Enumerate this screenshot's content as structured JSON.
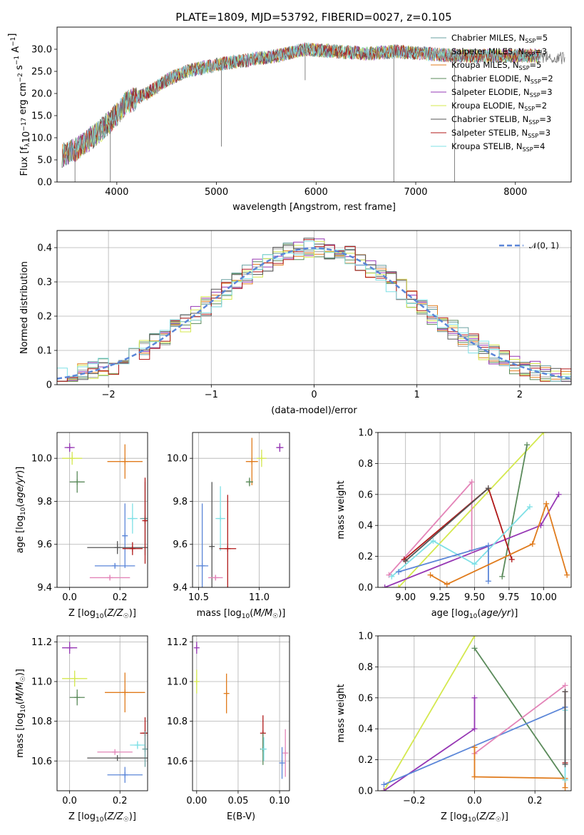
{
  "title": "PLATE=1809, MJD=53792, FIBERID=0027, z=0.105",
  "colors": {
    "chabrier_miles": "#6aa1a1",
    "salpeter_miles": "#a0a0a0",
    "kroupa_miles": "#e07b1c",
    "chabrier_elodie": "#5a8a5a",
    "salpeter_elodie": "#9637b4",
    "kroupa_elodie": "#d4e84e",
    "chabrier_stelib": "#555555",
    "salpeter_stelib": "#b01818",
    "kroupa_stelib": "#7fe0e6",
    "pink": "#e384b8",
    "blue": "#5b86d8",
    "gaussian": "#5b86d8"
  },
  "chart_data": [
    {
      "id": "spectrum",
      "type": "line",
      "title": "PLATE=1809, MJD=53792, FIBERID=0027, z=0.105",
      "xlabel": "wavelength [Angstrom, rest frame]",
      "ylabel": "Flux [f_λ10^{-17} erg cm^{-2} s^{-1} A^{-1}]",
      "xlim": [
        3400,
        8560
      ],
      "ylim": [
        0,
        35
      ],
      "xticks": [
        4000,
        5000,
        6000,
        7000,
        8000
      ],
      "yticks": [
        0,
        5,
        10,
        15,
        20,
        25,
        30
      ],
      "grid": false,
      "legend_position": "top-right",
      "legend": [
        {
          "label": "Chabrier MILES, N",
          "sub": "SSP",
          "tail": "=5",
          "color": "#6aa1a1"
        },
        {
          "label": "Salpeter MILES, N",
          "sub": "SSP",
          "tail": "=3",
          "color": "#a0a0a0"
        },
        {
          "label": "Kroupa MILES, N",
          "sub": "SSP",
          "tail": "=5",
          "color": "#e07b1c"
        },
        {
          "label": "Chabrier ELODIE, N",
          "sub": "SSP",
          "tail": "=2",
          "color": "#5a8a5a"
        },
        {
          "label": "Salpeter ELODIE, N",
          "sub": "SSP",
          "tail": "=3",
          "color": "#9637b4"
        },
        {
          "label": "Kroupa ELODIE, N",
          "sub": "SSP",
          "tail": "=2",
          "color": "#d4e84e"
        },
        {
          "label": "Chabrier STELIB, N",
          "sub": "SSP",
          "tail": "=3",
          "color": "#555555"
        },
        {
          "label": "Salpeter STELIB, N",
          "sub": "SSP",
          "tail": "=3",
          "color": "#b01818"
        },
        {
          "label": "Kroupa STELIB, N",
          "sub": "SSP",
          "tail": "=4",
          "color": "#7fe0e6"
        }
      ],
      "continuum": {
        "x": [
          3450,
          3600,
          3800,
          3950,
          4100,
          4300,
          4500,
          4700,
          5000,
          5300,
          5600,
          5900,
          6200,
          6500,
          6800,
          7100,
          7400,
          7700,
          8000,
          8300,
          8500
        ],
        "y": [
          6,
          7.5,
          11,
          14,
          18,
          20,
          23,
          25,
          26.5,
          27.5,
          28.5,
          30,
          29.5,
          29,
          29.5,
          29,
          28.5,
          28.5,
          28.5,
          28.5,
          28
        ]
      },
      "dips": [
        {
          "x": 3580,
          "y": 0
        },
        {
          "x": 3935,
          "y": 0
        },
        {
          "x": 5050,
          "y": 8
        },
        {
          "x": 5890,
          "y": 23
        },
        {
          "x": 6780,
          "y": 0
        },
        {
          "x": 7390,
          "y": 0
        }
      ]
    },
    {
      "id": "residuals",
      "type": "line",
      "xlabel": "(data-model)/error",
      "ylabel": "Normed distribution",
      "xlim": [
        -2.5,
        2.5
      ],
      "ylim": [
        0,
        0.45
      ],
      "xticks": [
        -2,
        -1,
        0,
        1,
        2
      ],
      "yticks": [
        0.0,
        0.1,
        0.2,
        0.3,
        0.4
      ],
      "grid": true,
      "legend_position": "top-right",
      "legend": [
        {
          "label": "𝒩(0, 1)",
          "style": "dashed",
          "color": "#5b86d8"
        }
      ],
      "gaussian": {
        "mu": 0,
        "sigma": 1
      }
    },
    {
      "id": "age_vs_Z",
      "type": "scatter",
      "xlabel": "Z [log10(Z/Z☉)]",
      "ylabel": "age  [log10(age/yr)]",
      "xlim": [
        -0.05,
        0.31
      ],
      "ylim": [
        9.4,
        10.12
      ],
      "xticks": [
        0.0,
        0.2
      ],
      "yticks": [
        9.4,
        9.6,
        9.8,
        10.0
      ],
      "grid": true,
      "points": [
        {
          "x": 0.0,
          "y": 10.05,
          "xerr": 0.02,
          "yerr": 0.02,
          "color": "#9637b4"
        },
        {
          "x": 0.01,
          "y": 10.0,
          "xerr": 0.04,
          "yerr": 0.03,
          "color": "#d4e84e"
        },
        {
          "x": 0.22,
          "y": 9.985,
          "xerr": 0.07,
          "yerr": 0.08,
          "color": "#e07b1c"
        },
        {
          "x": 0.03,
          "y": 9.89,
          "xerr": 0.03,
          "yerr": 0.05,
          "color": "#5a8a5a"
        },
        {
          "x": 0.3,
          "y": 9.72,
          "xerr": 0.02,
          "yerr": 0.17,
          "color": "#6aa1a1"
        },
        {
          "x": 0.25,
          "y": 9.72,
          "xerr": 0.02,
          "yerr": 0.07,
          "color": "#7fe0e6"
        },
        {
          "x": 0.22,
          "y": 9.64,
          "xerr": 0.01,
          "yerr": 0.15,
          "color": "#5b86d8"
        },
        {
          "x": 0.19,
          "y": 9.585,
          "xerr": 0.12,
          "yerr": 0.03,
          "color": "#555555"
        },
        {
          "x": 0.25,
          "y": 9.58,
          "xerr": 0.04,
          "yerr": 0.03,
          "color": "#b01818"
        },
        {
          "x": 0.3,
          "y": 9.71,
          "xerr": 0.005,
          "yerr": 0.2,
          "color": "#b01818"
        },
        {
          "x": 0.18,
          "y": 9.5,
          "xerr": 0.08,
          "yerr": 0.01,
          "color": "#5b86d8"
        },
        {
          "x": 0.16,
          "y": 9.445,
          "xerr": 0.08,
          "yerr": 0.01,
          "color": "#e384b8"
        }
      ]
    },
    {
      "id": "age_vs_mass",
      "type": "scatter",
      "xlabel": "mass [log10(M/M☉)]",
      "ylabel": "",
      "xlim": [
        10.45,
        11.25
      ],
      "ylim": [
        9.4,
        10.12
      ],
      "xticks": [
        10.5,
        11.0
      ],
      "yticks": [
        9.4,
        9.6,
        9.8,
        10.0
      ],
      "grid": true,
      "points": [
        {
          "x": 11.17,
          "y": 10.05,
          "xerr": 0.03,
          "yerr": 0.02,
          "color": "#9637b4"
        },
        {
          "x": 11.02,
          "y": 10.0,
          "xerr": 0.04,
          "yerr": 0.04,
          "color": "#d4e84e"
        },
        {
          "x": 10.94,
          "y": 9.985,
          "xerr": 0.05,
          "yerr": 0.11,
          "color": "#e07b1c"
        },
        {
          "x": 10.92,
          "y": 9.89,
          "xerr": 0.03,
          "yerr": 0.02,
          "color": "#5a8a5a"
        },
        {
          "x": 10.68,
          "y": 9.72,
          "xerr": 0.04,
          "yerr": 0.15,
          "color": "#7fe0e6"
        },
        {
          "x": 10.61,
          "y": 9.59,
          "xerr": 0.01,
          "yerr": 0.3,
          "color": "#555555"
        },
        {
          "x": 10.74,
          "y": 9.58,
          "xerr": 0.07,
          "yerr": 0.25,
          "color": "#b01818"
        },
        {
          "x": 10.53,
          "y": 9.5,
          "xerr": 0.05,
          "yerr": 0.29,
          "color": "#5b86d8"
        },
        {
          "x": 10.64,
          "y": 9.445,
          "xerr": 0.06,
          "yerr": 0.01,
          "color": "#e384b8"
        }
      ]
    },
    {
      "id": "mw_vs_age",
      "type": "line",
      "xlabel": "age  [log10(age/yr)]",
      "ylabel": "mass weight",
      "xlim": [
        8.8,
        10.2
      ],
      "ylim": [
        0.0,
        1.0
      ],
      "xticks": [
        9.0,
        9.25,
        9.5,
        9.75,
        10.0
      ],
      "xticklabels": [
        "9.00",
        "9.25",
        "9.50",
        "9.75",
        "10.00"
      ],
      "yticks": [
        0.0,
        0.2,
        0.4,
        0.6,
        0.8,
        1.0
      ],
      "grid": true,
      "series": [
        {
          "color": "#d4e84e",
          "x": [
            8.95,
            10.0
          ],
          "y": [
            0.0,
            1.0
          ]
        },
        {
          "color": "#5a8a5a",
          "x": [
            9.7,
            9.88
          ],
          "y": [
            0.07,
            0.92
          ]
        },
        {
          "color": "#9637b4",
          "x": [
            8.85,
            9.98,
            10.11
          ],
          "y": [
            0.0,
            0.4,
            0.6
          ]
        },
        {
          "color": "#e384b8",
          "x": [
            8.88,
            9.48,
            9.48
          ],
          "y": [
            0.08,
            0.68,
            0.24
          ]
        },
        {
          "color": "#b01818",
          "x": [
            8.99,
            9.6,
            9.77
          ],
          "y": [
            0.18,
            0.64,
            0.18
          ]
        },
        {
          "color": "#555555",
          "x": [
            9.0,
            9.6
          ],
          "y": [
            0.17,
            0.64
          ]
        },
        {
          "color": "#7fe0e6",
          "x": [
            8.9,
            9.2,
            9.5,
            9.9
          ],
          "y": [
            0.07,
            0.3,
            0.15,
            0.52
          ]
        },
        {
          "color": "#5b86d8",
          "x": [
            8.95,
            9.6,
            9.6
          ],
          "y": [
            0.1,
            0.27,
            0.04
          ]
        },
        {
          "color": "#e07b1c",
          "x": [
            9.18,
            9.3,
            9.92,
            10.02,
            10.17
          ],
          "y": [
            0.08,
            0.02,
            0.28,
            0.54,
            0.08
          ]
        }
      ]
    },
    {
      "id": "mass_vs_Z",
      "type": "scatter",
      "xlabel": "Z [log10(Z/Z☉)]",
      "ylabel": "mass [log10(M/M☉)]",
      "xlim": [
        -0.05,
        0.31
      ],
      "ylim": [
        10.45,
        11.23
      ],
      "xticks": [
        0.0,
        0.2
      ],
      "yticks": [
        10.6,
        10.8,
        11.0,
        11.2
      ],
      "grid": true,
      "points": [
        {
          "x": 0.0,
          "y": 11.17,
          "xerr": 0.03,
          "yerr": 0.03,
          "color": "#9637b4"
        },
        {
          "x": 0.02,
          "y": 11.015,
          "xerr": 0.05,
          "yerr": 0.04,
          "color": "#d4e84e"
        },
        {
          "x": 0.22,
          "y": 10.945,
          "xerr": 0.08,
          "yerr": 0.1,
          "color": "#e07b1c"
        },
        {
          "x": 0.03,
          "y": 10.92,
          "xerr": 0.03,
          "yerr": 0.04,
          "color": "#5a8a5a"
        },
        {
          "x": 0.3,
          "y": 10.74,
          "xerr": 0.02,
          "yerr": 0.08,
          "color": "#b01818"
        },
        {
          "x": 0.27,
          "y": 10.68,
          "xerr": 0.03,
          "yerr": 0.02,
          "color": "#7fe0e6"
        },
        {
          "x": 0.3,
          "y": 10.66,
          "xerr": 0.005,
          "yerr": 0.09,
          "color": "#6aa1a1"
        },
        {
          "x": 0.18,
          "y": 10.645,
          "xerr": 0.07,
          "yerr": 0.0,
          "color": "#e384b8"
        },
        {
          "x": 0.19,
          "y": 10.615,
          "xerr": 0.12,
          "yerr": 0.0,
          "color": "#555555"
        },
        {
          "x": 0.22,
          "y": 10.53,
          "xerr": 0.07,
          "yerr": 0.04,
          "color": "#5b86d8"
        }
      ]
    },
    {
      "id": "mass_vs_ebv",
      "type": "scatter",
      "xlabel": "E(B-V)",
      "ylabel": "",
      "xlim": [
        -0.005,
        0.112
      ],
      "ylim": [
        10.45,
        11.23
      ],
      "xticks": [
        0.0,
        0.05,
        0.1
      ],
      "xticklabels": [
        "0.00",
        "0.05",
        "0.10"
      ],
      "yticks": [
        10.6,
        10.8,
        11.0,
        11.2
      ],
      "grid": true,
      "points": [
        {
          "x": 0.0,
          "y": 11.17,
          "xerr": 0,
          "yerr": 0.03,
          "color": "#9637b4"
        },
        {
          "x": 0.0,
          "y": 11.0,
          "xerr": 0,
          "yerr": 0.06,
          "color": "#d4e84e"
        },
        {
          "x": 0.036,
          "y": 10.94,
          "xerr": 0,
          "yerr": 0.1,
          "color": "#e07b1c"
        },
        {
          "x": 0.08,
          "y": 10.74,
          "xerr": 0,
          "yerr": 0.09,
          "color": "#b01818"
        },
        {
          "x": 0.08,
          "y": 10.66,
          "xerr": 0,
          "yerr": 0.08,
          "color": "#5a8a5a"
        },
        {
          "x": 0.081,
          "y": 10.66,
          "xerr": 0,
          "yerr": 0.06,
          "color": "#7fe0e6"
        },
        {
          "x": 0.103,
          "y": 10.59,
          "xerr": 0,
          "yerr": 0.08,
          "color": "#5b86d8"
        },
        {
          "x": 0.107,
          "y": 10.64,
          "xerr": 0,
          "yerr": 0.12,
          "color": "#e384b8"
        }
      ]
    },
    {
      "id": "mw_vs_Z",
      "type": "line",
      "xlabel": "Z [log10(Z/Z☉)]",
      "ylabel": "mass weight",
      "xlim": [
        -0.32,
        0.32
      ],
      "ylim": [
        0.0,
        1.0
      ],
      "xticks": [
        -0.2,
        0.0,
        0.2
      ],
      "yticks": [
        0.0,
        0.2,
        0.4,
        0.6,
        0.8,
        1.0
      ],
      "grid": true,
      "series": [
        {
          "color": "#d4e84e",
          "x": [
            -0.3,
            0.0
          ],
          "y": [
            0.0,
            1.0
          ]
        },
        {
          "color": "#5a8a5a",
          "x": [
            0.0,
            0.3
          ],
          "y": [
            0.92,
            0.07
          ]
        },
        {
          "color": "#9637b4",
          "x": [
            -0.3,
            0.0,
            0.0
          ],
          "y": [
            0.0,
            0.4,
            0.6
          ]
        },
        {
          "color": "#5b86d8",
          "x": [
            -0.3,
            0.3
          ],
          "y": [
            0.04,
            0.54
          ]
        },
        {
          "color": "#e384b8",
          "x": [
            0.0,
            0.3
          ],
          "y": [
            0.24,
            0.68
          ]
        },
        {
          "color": "#e07b1c",
          "x": [
            0.0,
            0.0,
            0.3,
            0.3
          ],
          "y": [
            0.28,
            0.09,
            0.08,
            0.02
          ]
        },
        {
          "color": "#b01818",
          "x": [
            0.3,
            0.3
          ],
          "y": [
            0.64,
            0.18
          ]
        },
        {
          "color": "#7fe0e6",
          "x": [
            0.3,
            0.3
          ],
          "y": [
            0.52,
            0.07
          ]
        },
        {
          "color": "#555555",
          "x": [
            0.3,
            0.3
          ],
          "y": [
            0.64,
            0.17
          ]
        }
      ]
    }
  ]
}
